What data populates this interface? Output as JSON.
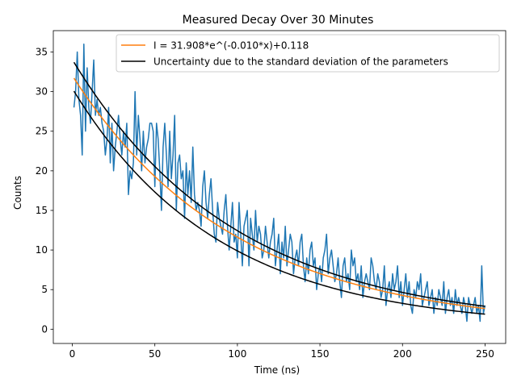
{
  "chart_data": {
    "type": "line",
    "title": "Measured Decay Over 30 Minutes",
    "xlabel": "Time (ns)",
    "ylabel": "Counts",
    "xlim": [
      -11.5,
      262.5
    ],
    "ylim": [
      -1.8,
      37.7
    ],
    "xticks": [
      0,
      50,
      100,
      150,
      200,
      250
    ],
    "yticks": [
      0,
      5,
      10,
      15,
      20,
      25,
      30,
      35
    ],
    "grid": false,
    "legend_position": "top-right",
    "colors": {
      "data": "#1f77b4",
      "fit": "#ff7f0e",
      "bounds": "#000000"
    },
    "series": [
      {
        "kind": "measured",
        "color": "#1f77b4",
        "x": [
          1,
          2,
          3,
          4,
          5,
          6,
          7,
          8,
          9,
          10,
          11,
          12,
          13,
          14,
          15,
          16,
          17,
          18,
          19,
          20,
          21,
          22,
          23,
          24,
          25,
          26,
          27,
          28,
          29,
          30,
          31,
          32,
          33,
          34,
          35,
          36,
          37,
          38,
          39,
          40,
          41,
          42,
          43,
          44,
          45,
          46,
          47,
          48,
          49,
          50,
          51,
          52,
          53,
          54,
          55,
          56,
          57,
          58,
          59,
          60,
          61,
          62,
          63,
          64,
          65,
          66,
          67,
          68,
          69,
          70,
          71,
          72,
          73,
          74,
          75,
          76,
          77,
          78,
          79,
          80,
          81,
          82,
          83,
          84,
          85,
          86,
          87,
          88,
          89,
          90,
          91,
          92,
          93,
          94,
          95,
          96,
          97,
          98,
          99,
          100,
          101,
          102,
          103,
          104,
          105,
          106,
          107,
          108,
          109,
          110,
          111,
          112,
          113,
          114,
          115,
          116,
          117,
          118,
          119,
          120,
          121,
          122,
          123,
          124,
          125,
          126,
          127,
          128,
          129,
          130,
          131,
          132,
          133,
          134,
          135,
          136,
          137,
          138,
          139,
          140,
          141,
          142,
          143,
          144,
          145,
          146,
          147,
          148,
          149,
          150,
          151,
          152,
          153,
          154,
          155,
          156,
          157,
          158,
          159,
          160,
          161,
          162,
          163,
          164,
          165,
          166,
          167,
          168,
          169,
          170,
          171,
          172,
          173,
          174,
          175,
          176,
          177,
          178,
          179,
          180,
          181,
          182,
          183,
          184,
          185,
          186,
          187,
          188,
          189,
          190,
          191,
          192,
          193,
          194,
          195,
          196,
          197,
          198,
          199,
          200,
          201,
          202,
          203,
          204,
          205,
          206,
          207,
          208,
          209,
          210,
          211,
          212,
          213,
          214,
          215,
          216,
          217,
          218,
          219,
          220,
          221,
          222,
          223,
          224,
          225,
          226,
          227,
          228,
          229,
          230,
          231,
          232,
          233,
          234,
          235,
          236,
          237,
          238,
          239,
          240,
          241,
          242,
          243,
          244,
          245,
          246,
          247,
          248,
          249,
          250
        ],
        "y": [
          28,
          30,
          35,
          29,
          27,
          22,
          36,
          25,
          33,
          28,
          26,
          30,
          34,
          27,
          29,
          27,
          28,
          26,
          25,
          22,
          24,
          28,
          21,
          26,
          20,
          23,
          25,
          27,
          24,
          22,
          25,
          23,
          26,
          17,
          20,
          19,
          21,
          30,
          22,
          27,
          24,
          20,
          25,
          21,
          23,
          24,
          26,
          26,
          25,
          18,
          26,
          24,
          20,
          15,
          23,
          26,
          22,
          18,
          25,
          19,
          22,
          27,
          15,
          21,
          22,
          19,
          20,
          14,
          21,
          17,
          20,
          16,
          23,
          17,
          15,
          16,
          15,
          13,
          18,
          20,
          16,
          14,
          17,
          19,
          15,
          12,
          11,
          16,
          14,
          13,
          12,
          15,
          17,
          13,
          10,
          13,
          16,
          11,
          12,
          9,
          16,
          12,
          8,
          13,
          14,
          15,
          8,
          14,
          12,
          10,
          15,
          11,
          13,
          12,
          9,
          10,
          13,
          11,
          9,
          11,
          12,
          14,
          8,
          10,
          12,
          7,
          11,
          9,
          13,
          8,
          10,
          12,
          11,
          7,
          9,
          10,
          8,
          11,
          12,
          8,
          6,
          9,
          7,
          10,
          11,
          8,
          9,
          5,
          7,
          8,
          6,
          9,
          10,
          12,
          7,
          9,
          10,
          8,
          6,
          7,
          9,
          6,
          4,
          8,
          9,
          6,
          7,
          5,
          10,
          8,
          9,
          6,
          7,
          5,
          8,
          4,
          6,
          7,
          6,
          5,
          9,
          8,
          6,
          5,
          7,
          6,
          4,
          5,
          8,
          3,
          5,
          6,
          4,
          7,
          5,
          6,
          8,
          4,
          6,
          3,
          5,
          7,
          4,
          6,
          3,
          2,
          5,
          4,
          6,
          5,
          7,
          3,
          4,
          5,
          6,
          3,
          4,
          5,
          2,
          4,
          3,
          5,
          4,
          3,
          6,
          2,
          4,
          5,
          3,
          4,
          2,
          5,
          3,
          4,
          3,
          2,
          4,
          3,
          1,
          4,
          3,
          2,
          3,
          4,
          2,
          3,
          1,
          8,
          2,
          3
        ]
      },
      {
        "kind": "fit",
        "name": "I = 31.908*e^(-0.010*x)+0.118",
        "color": "#ff7f0e",
        "A": 31.908,
        "k": -0.0102,
        "c": 0.118
      },
      {
        "kind": "bound",
        "name": "Uncertainty due to the standard deviation of the parameters",
        "color": "#000000",
        "A": 33.8,
        "k": -0.0102,
        "c": 0.25
      },
      {
        "kind": "bound",
        "color": "#000000",
        "A": 30.3,
        "k": -0.0113,
        "c": 0.1
      }
    ],
    "x_range": [
      1,
      250
    ]
  }
}
